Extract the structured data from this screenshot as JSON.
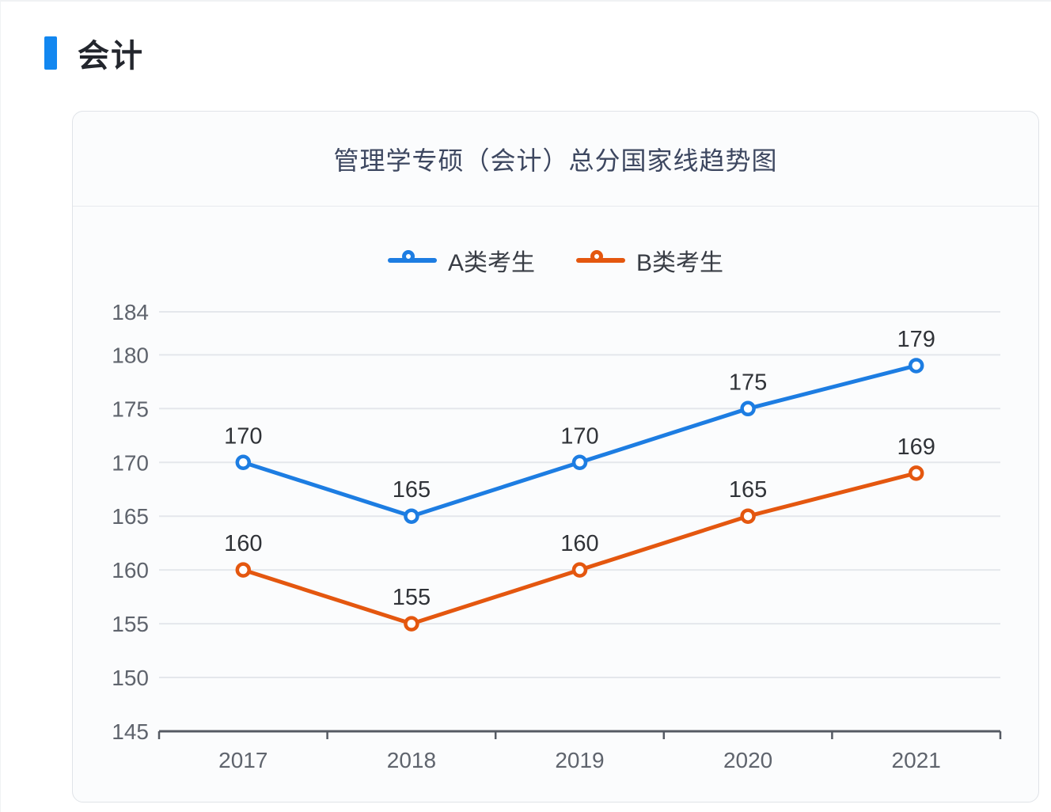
{
  "header": {
    "title": "会计"
  },
  "chart_data": {
    "type": "line",
    "title": "管理学专硕（会计）总分国家线趋势图",
    "categories": [
      "2017",
      "2018",
      "2019",
      "2020",
      "2021"
    ],
    "series": [
      {
        "name": "A类考生",
        "color": "#1d7de2",
        "values": [
          170,
          165,
          170,
          175,
          179
        ]
      },
      {
        "name": "B类考生",
        "color": "#e4570f",
        "values": [
          160,
          155,
          160,
          165,
          169
        ]
      }
    ],
    "xlabel": "",
    "ylabel": "",
    "ylim": [
      145,
      184
    ],
    "yticks": [
      145,
      150,
      155,
      160,
      165,
      170,
      175,
      180,
      184
    ],
    "grid": true,
    "data_labels": true,
    "legend_position": "top",
    "colors": {
      "grid_line": "#e4e7ec",
      "axis_line": "#555a63",
      "axis_label": "#5f646d",
      "data_label": "#303338",
      "point_fill": "#ffffff"
    }
  }
}
